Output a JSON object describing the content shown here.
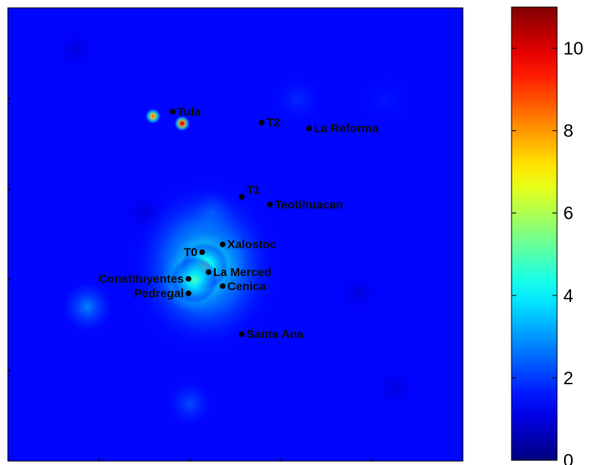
{
  "chart_data": {
    "type": "heatmap",
    "title": "",
    "xlabel": "",
    "ylabel": "",
    "colormap": "jet",
    "colorbar": {
      "range": [
        0,
        11
      ],
      "ticks": [
        0,
        2,
        4,
        6,
        8,
        10
      ],
      "tick_labels": [
        "0",
        "2",
        "4",
        "6",
        "8",
        "10"
      ]
    },
    "colors": {
      "min": "#00007f",
      "low": "#0000ff",
      "mid_low": "#00ffff",
      "mid": "#ffff00",
      "mid_high": "#ff8000",
      "max": "#7f0000"
    },
    "sites": [
      {
        "name": "Tula",
        "x": 0.362,
        "y": 0.229
      },
      {
        "name": "T2",
        "x": 0.558,
        "y": 0.253
      },
      {
        "name": "La Reforma",
        "x": 0.662,
        "y": 0.266
      },
      {
        "name": "T1",
        "x": 0.514,
        "y": 0.417
      },
      {
        "name": "Teotihuacan",
        "x": 0.576,
        "y": 0.434
      },
      {
        "name": "Xalostoc",
        "x": 0.472,
        "y": 0.522
      },
      {
        "name": "T0",
        "x": 0.427,
        "y": 0.539
      },
      {
        "name": "La Merced",
        "x": 0.441,
        "y": 0.583
      },
      {
        "name": "Constituyentes",
        "x": 0.397,
        "y": 0.598
      },
      {
        "name": "Cenica",
        "x": 0.472,
        "y": 0.614
      },
      {
        "name": "Pedregal",
        "x": 0.397,
        "y": 0.63
      },
      {
        "name": "Santa Ana",
        "x": 0.514,
        "y": 0.72
      }
    ],
    "hotspots": [
      {
        "x": 0.319,
        "y": 0.239,
        "value": 9.0
      },
      {
        "x": 0.383,
        "y": 0.255,
        "value": 11.0
      },
      {
        "x": 0.432,
        "y": 0.57,
        "value": 5.5
      },
      {
        "x": 0.41,
        "y": 0.6,
        "value": 5.0
      },
      {
        "x": 0.472,
        "y": 0.562,
        "value": 3.0
      },
      {
        "x": 0.45,
        "y": 0.45,
        "value": 2.2
      },
      {
        "x": 0.175,
        "y": 0.66,
        "value": 2.8
      },
      {
        "x": 0.4,
        "y": 0.873,
        "value": 2.2
      },
      {
        "x": 0.637,
        "y": 0.202,
        "value": 1.8
      },
      {
        "x": 0.83,
        "y": 0.203,
        "value": 1.6
      },
      {
        "x": 0.85,
        "y": 0.84,
        "value": 1.0
      },
      {
        "x": 0.15,
        "y": 0.09,
        "value": 1.0
      },
      {
        "x": 0.77,
        "y": 0.63,
        "value": 1.0
      },
      {
        "x": 0.3,
        "y": 0.45,
        "value": 1.0
      }
    ]
  }
}
